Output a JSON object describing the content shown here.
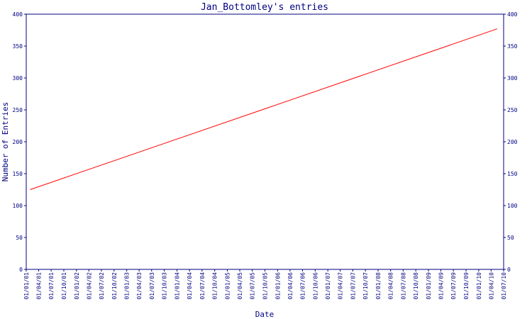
{
  "chart_data": {
    "type": "line",
    "title": "Jan_Bottomley's entries",
    "xlabel": "Date",
    "ylabel": "Number of Entries",
    "ylim": [
      0,
      400
    ],
    "yticks": [
      0,
      50,
      100,
      150,
      200,
      250,
      300,
      350,
      400
    ],
    "x_tick_labels": [
      "01/01/01",
      "01/04/01",
      "01/07/01",
      "01/10/01",
      "01/01/02",
      "01/04/02",
      "01/07/02",
      "01/10/02",
      "01/01/03",
      "01/04/03",
      "01/07/03",
      "01/10/03",
      "01/01/04",
      "01/04/04",
      "01/07/04",
      "01/10/04",
      "01/01/05",
      "01/04/05",
      "01/07/05",
      "01/10/05",
      "01/01/06",
      "01/04/06",
      "01/07/06",
      "01/10/06",
      "01/01/07",
      "01/04/07",
      "01/07/07",
      "01/10/07",
      "01/01/08",
      "01/04/08",
      "01/07/08",
      "01/10/08",
      "01/01/09",
      "01/04/09",
      "01/07/09",
      "01/10/09",
      "01/01/10",
      "01/04/10",
      "01/07/10"
    ],
    "series": [
      {
        "color": "#ff0000",
        "points": [
          {
            "x": "2001-01-29",
            "y": 125
          },
          {
            "x": "2010-05-15",
            "y": 377
          }
        ]
      }
    ],
    "axis_color": "#000080",
    "grid": false
  }
}
